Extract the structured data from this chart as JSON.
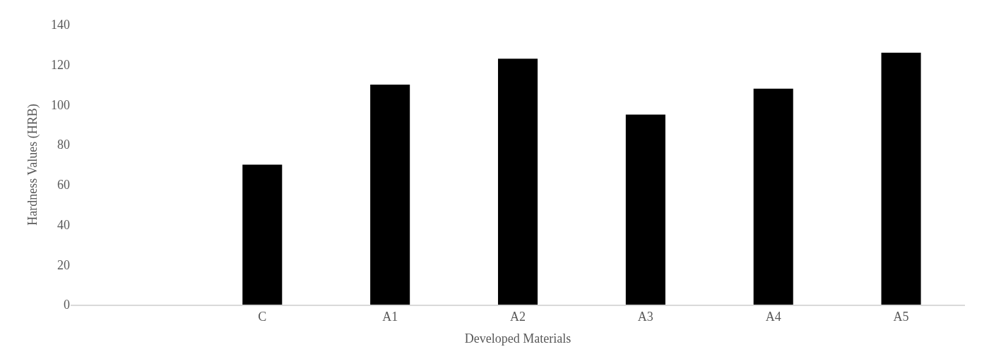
{
  "chart_data": {
    "type": "bar",
    "xlabel": "Developed Materials",
    "ylabel": "Hardness Values (HRB)",
    "categories": [
      null,
      "C",
      "A1",
      "A2",
      "A3",
      "A4",
      "A5"
    ],
    "values": [
      null,
      70,
      110,
      123,
      95,
      108,
      126
    ],
    "color": "#000000",
    "ylim": [
      0,
      140
    ],
    "yticks": [
      0,
      20,
      40,
      60,
      80,
      100,
      120,
      140
    ]
  }
}
